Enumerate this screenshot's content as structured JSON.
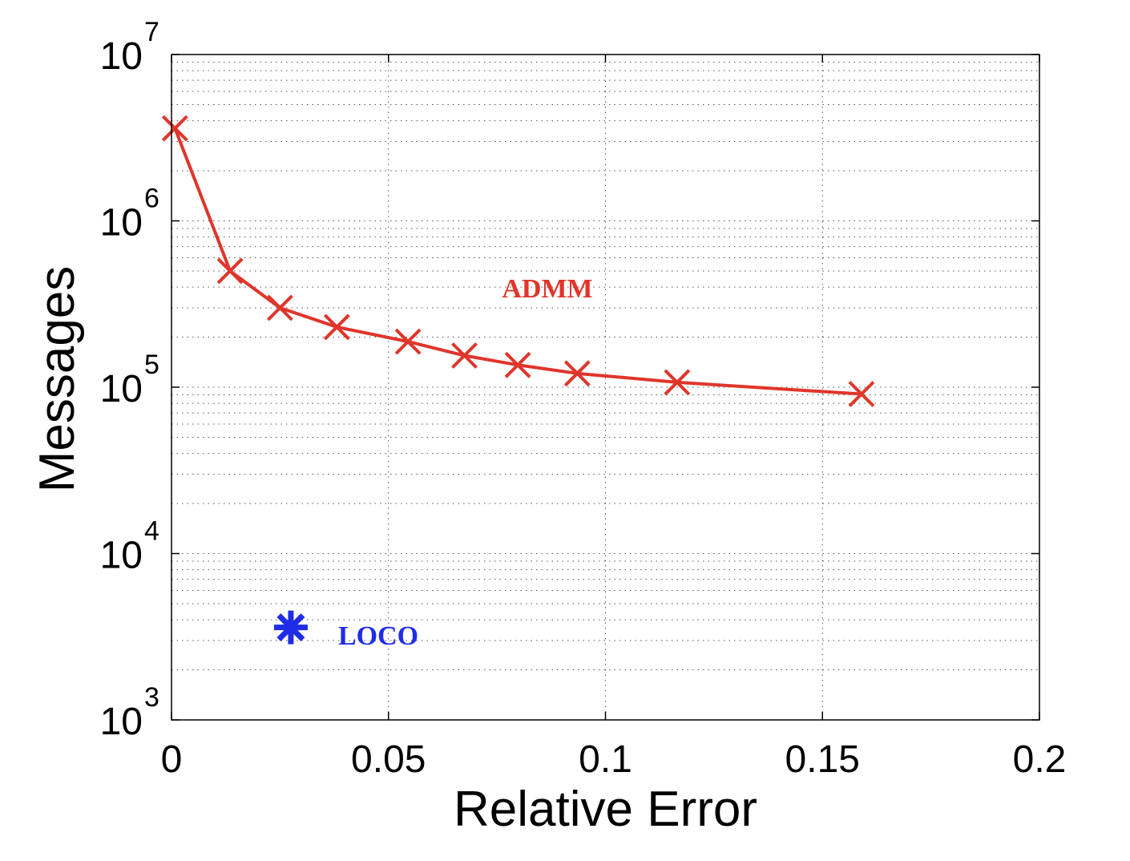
{
  "chart_data": {
    "type": "line",
    "xlabel": "Relative Error",
    "ylabel": "Messages",
    "xlim": [
      0,
      0.2
    ],
    "ylim": [
      1000,
      10000000
    ],
    "yscale": "log",
    "grid": true,
    "x_ticks": [
      "0",
      "0.05",
      "0.1",
      "0.15",
      "0.2"
    ],
    "x_tick_values": [
      0,
      0.05,
      0.1,
      0.15,
      0.2
    ],
    "y_ticks": [
      {
        "base": "10",
        "exp": "3",
        "value": 1000
      },
      {
        "base": "10",
        "exp": "4",
        "value": 10000
      },
      {
        "base": "10",
        "exp": "5",
        "value": 100000
      },
      {
        "base": "10",
        "exp": "6",
        "value": 1000000
      },
      {
        "base": "10",
        "exp": "7",
        "value": 10000000
      }
    ],
    "series": [
      {
        "name": "ADMM",
        "color": "#e0352b",
        "marker": "x",
        "line": true,
        "x": [
          0.0008,
          0.0135,
          0.025,
          0.0381,
          0.0545,
          0.0675,
          0.0798,
          0.0935,
          0.1165,
          0.159
        ],
        "y": [
          3600000,
          500000,
          300000,
          230000,
          188000,
          155000,
          136000,
          121000,
          107000,
          91000
        ]
      },
      {
        "name": "LOCO",
        "color": "#1f2de8",
        "marker": "asterisk",
        "line": false,
        "x": [
          0.0275
        ],
        "y": [
          3600
        ]
      }
    ],
    "annotations": [
      {
        "text": "ADMM",
        "series": 0
      },
      {
        "text": "LOCO",
        "series": 1
      }
    ]
  }
}
